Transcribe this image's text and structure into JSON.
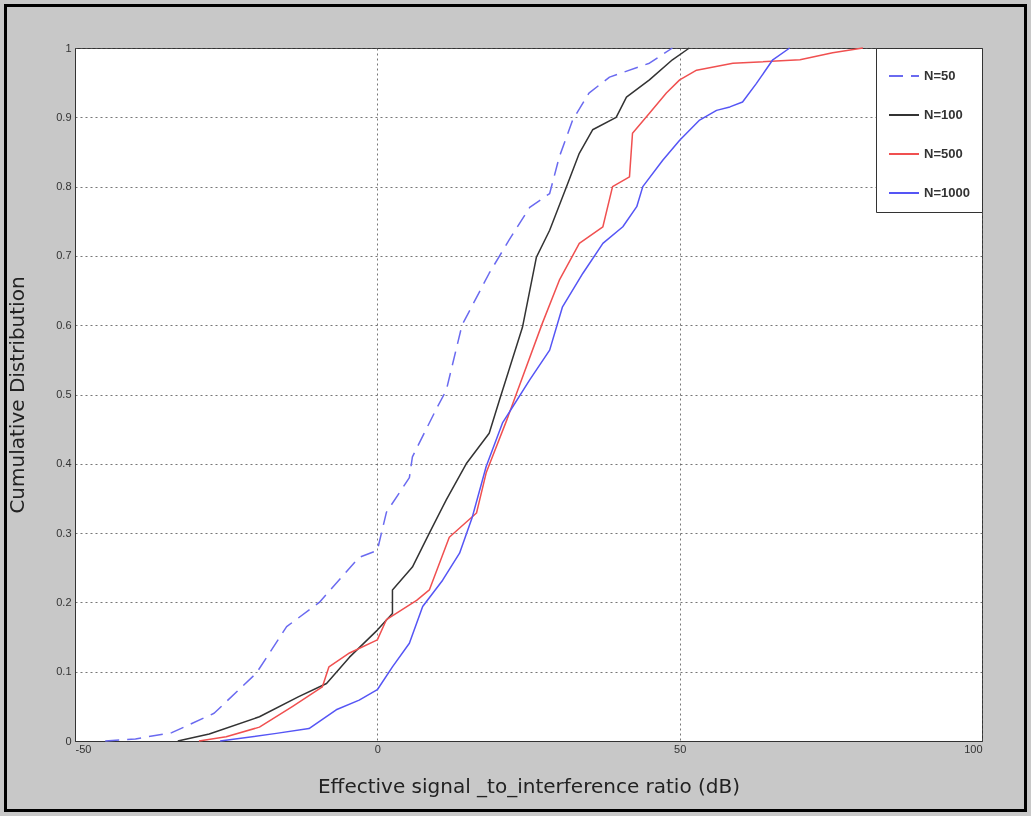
{
  "chart_data": {
    "type": "line",
    "xlabel": "Effective signal _to_interference ratio (dB)",
    "ylabel": "Cumulative Distribution",
    "xlim": [
      -50,
      100
    ],
    "xticks": [
      -50,
      0,
      50,
      100
    ],
    "ylim": [
      0,
      1
    ],
    "yticks": [
      0,
      0.1,
      0.2,
      0.3,
      0.4,
      0.5,
      0.6,
      0.7,
      0.8,
      0.9,
      1
    ],
    "grid": true,
    "legend": "top right",
    "series": [
      {
        "name": "N=50",
        "color": "#6a6af0",
        "line_style": "dashed",
        "x": [
          -45,
          -40,
          -34,
          -27,
          -20,
          -15,
          -9.6,
          -3,
          0,
          1.5,
          5.3,
          5.8,
          9.8,
          11.4,
          14,
          18.5,
          21.8,
          25.2,
          28.5,
          30.1,
          32.3,
          35,
          38.4,
          45,
          48.8
        ],
        "values": [
          0,
          0.003,
          0.012,
          0.04,
          0.098,
          0.165,
          0.2,
          0.265,
          0.275,
          0.33,
          0.38,
          0.41,
          0.48,
          0.506,
          0.6,
          0.675,
          0.723,
          0.77,
          0.79,
          0.843,
          0.896,
          0.935,
          0.958,
          0.978,
          1
        ]
      },
      {
        "name": "N=100",
        "color": "#333333",
        "line_style": "solid",
        "x": [
          -33,
          -27.8,
          -19.5,
          -13,
          -8.4,
          -4.6,
          0,
          2.5,
          2.5,
          5.8,
          8.6,
          11.4,
          14.7,
          18.5,
          20.2,
          24,
          26.3,
          28.5,
          31.3,
          33.4,
          35.6,
          39.5,
          41.2,
          45,
          48.8,
          51.6
        ],
        "values": [
          0,
          0.01,
          0.035,
          0.064,
          0.083,
          0.121,
          0.16,
          0.184,
          0.218,
          0.251,
          0.3,
          0.348,
          0.4,
          0.444,
          0.492,
          0.597,
          0.698,
          0.737,
          0.8,
          0.848,
          0.882,
          0.9,
          0.929,
          0.954,
          0.983,
          1
        ]
      },
      {
        "name": "N=500",
        "color": "#f05050",
        "line_style": "solid",
        "x": [
          -29.5,
          -25,
          -19.5,
          -14,
          -9.1,
          -8,
          -4.6,
          0,
          1.5,
          6.5,
          8.6,
          11.9,
          16.4,
          18,
          21.4,
          27.3,
          30.1,
          33.4,
          37.3,
          38.9,
          41.7,
          42.2,
          45,
          47.8,
          50,
          52.8,
          58.8,
          69.9,
          75.3,
          80.3
        ],
        "values": [
          0,
          0.006,
          0.02,
          0.05,
          0.078,
          0.107,
          0.127,
          0.146,
          0.175,
          0.203,
          0.218,
          0.294,
          0.329,
          0.387,
          0.463,
          0.603,
          0.665,
          0.718,
          0.742,
          0.8,
          0.814,
          0.877,
          0.906,
          0.935,
          0.954,
          0.968,
          0.978,
          0.983,
          0.993,
          1
        ]
      },
      {
        "name": "N=1000",
        "color": "#5555f5",
        "line_style": "solid",
        "x": [
          -26,
          -16.7,
          -11.3,
          -6.8,
          -3,
          0,
          2.5,
          5.3,
          7.5,
          10.8,
          13.6,
          15.7,
          18,
          20.7,
          25.2,
          28.5,
          30.6,
          34,
          37.3,
          40.6,
          42.9,
          43.9,
          47.2,
          50,
          53.3,
          56.1,
          58.3,
          60.4,
          62.7,
          65.4,
          68.2
        ],
        "values": [
          0,
          0.011,
          0.018,
          0.045,
          0.059,
          0.074,
          0.107,
          0.141,
          0.194,
          0.232,
          0.271,
          0.323,
          0.396,
          0.459,
          0.521,
          0.564,
          0.626,
          0.675,
          0.718,
          0.742,
          0.771,
          0.8,
          0.838,
          0.867,
          0.896,
          0.91,
          0.915,
          0.922,
          0.949,
          0.983,
          1
        ]
      }
    ]
  }
}
